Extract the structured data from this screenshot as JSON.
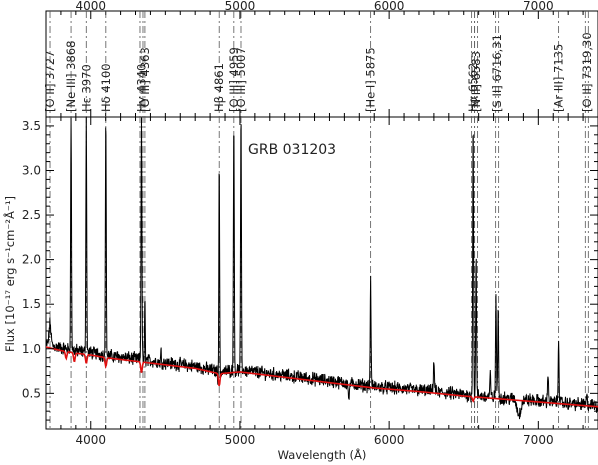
{
  "chart_data": {
    "type": "line",
    "title": "GRB 031203",
    "xlabel": "Wavelength (Å)",
    "ylabel": "Flux [10⁻¹⁷ erg s⁻¹cm⁻²Å⁻¹]",
    "xlim": [
      3700,
      7400
    ],
    "ylim": [
      0.1,
      3.6
    ],
    "x_ticks": [
      4000,
      5000,
      6000,
      7000
    ],
    "x_tick_labels": [
      "4000",
      "5000",
      "6000",
      "7000"
    ],
    "y_ticks": [
      0.5,
      1.0,
      1.5,
      2.0,
      2.5,
      3.0,
      3.5
    ],
    "y_tick_labels": [
      "0.5",
      "1.0",
      "1.5",
      "2.0",
      "2.5",
      "3.0",
      "3.5"
    ],
    "grid": false,
    "colors": {
      "spectrum": "#000000",
      "model": "#e01010",
      "frame": "#000000"
    },
    "emission_lines": [
      {
        "label": "[O II] 3727",
        "wavelength": 3727,
        "double": false
      },
      {
        "label": "[Ne III] 3868",
        "wavelength": 3868,
        "double": false
      },
      {
        "label": "Hε 3970",
        "wavelength": 3970,
        "double": false
      },
      {
        "label": "Hδ 4100",
        "wavelength": 4101,
        "double": false
      },
      {
        "label": "Hγ 4340",
        "wavelength": 4340,
        "double": true
      },
      {
        "label": "[O III] 4363",
        "wavelength": 4363,
        "double": false
      },
      {
        "label": "Hβ 4861",
        "wavelength": 4861,
        "double": false
      },
      {
        "label": "[O III] 4959",
        "wavelength": 4959,
        "double": false
      },
      {
        "label": "[O III] 5007",
        "wavelength": 5007,
        "double": false
      },
      {
        "label": "[He I] 5875",
        "wavelength": 5876,
        "double": false
      },
      {
        "label": "Hα 6562",
        "wavelength": 6563,
        "double": true
      },
      {
        "label": "[N II] 6583",
        "wavelength": 6583,
        "double": true
      },
      {
        "label": "[S II] 6716,31",
        "wavelength": 6724,
        "double": true
      },
      {
        "label": "[Ar III] 7135",
        "wavelength": 7136,
        "double": false
      },
      {
        "label": "[O II] 7319,30",
        "wavelength": 7325,
        "double": true
      }
    ],
    "continuum_model": {
      "name": "",
      "x": [
        3700,
        3800,
        3900,
        4000,
        4100,
        4300,
        4500,
        4700,
        4861,
        5000,
        5300,
        5600,
        5900,
        6200,
        6500,
        6800,
        7100,
        7400
      ],
      "values": [
        1.02,
        0.98,
        0.95,
        0.93,
        0.9,
        0.86,
        0.82,
        0.78,
        0.72,
        0.74,
        0.68,
        0.62,
        0.56,
        0.52,
        0.47,
        0.43,
        0.39,
        0.35
      ]
    },
    "spectrum_peaks": [
      {
        "wavelength": 3727,
        "peak": 1.25,
        "width": 9
      },
      {
        "wavelength": 3868,
        "peak": 3.6,
        "width": 4
      },
      {
        "wavelength": 3970,
        "peak": 3.6,
        "width": 4
      },
      {
        "wavelength": 4101,
        "peak": 3.6,
        "width": 4
      },
      {
        "wavelength": 4340,
        "peak": 3.6,
        "width": 4
      },
      {
        "wavelength": 4363,
        "peak": 1.55,
        "width": 3
      },
      {
        "wavelength": 4471,
        "peak": 0.95,
        "width": 3
      },
      {
        "wavelength": 4861,
        "peak": 3.6,
        "width": 4
      },
      {
        "wavelength": 4959,
        "peak": 3.6,
        "width": 4
      },
      {
        "wavelength": 5007,
        "peak": 3.6,
        "width": 4
      },
      {
        "wavelength": 5876,
        "peak": 1.75,
        "width": 4
      },
      {
        "wavelength": 6300,
        "peak": 0.85,
        "width": 5
      },
      {
        "wavelength": 6563,
        "peak": 3.6,
        "width": 4
      },
      {
        "wavelength": 6583,
        "peak": 2.05,
        "width": 4
      },
      {
        "wavelength": 6678,
        "peak": 0.7,
        "width": 4
      },
      {
        "wavelength": 6716,
        "peak": 1.6,
        "width": 4
      },
      {
        "wavelength": 6731,
        "peak": 1.45,
        "width": 4
      },
      {
        "wavelength": 7065,
        "peak": 0.75,
        "width": 4
      },
      {
        "wavelength": 7136,
        "peak": 1.15,
        "width": 4
      },
      {
        "wavelength": 7325,
        "peak": 0.45,
        "width": 4
      }
    ],
    "spectrum_dips": [
      {
        "wavelength": 4860,
        "depth": 0.55,
        "width": 6
      },
      {
        "wavelength": 5730,
        "depth": 0.22,
        "width": 4
      },
      {
        "wavelength": 6870,
        "depth": 0.17,
        "width": 18
      }
    ]
  }
}
